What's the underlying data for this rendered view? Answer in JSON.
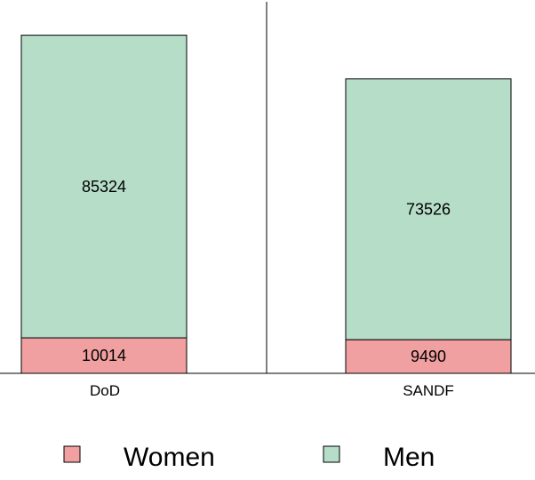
{
  "chart_data": {
    "type": "bar",
    "stacked": true,
    "categories": [
      "DoD",
      "SANDF"
    ],
    "series": [
      {
        "name": "Women",
        "values": [
          10014,
          9490
        ],
        "color": "#f0a0a0"
      },
      {
        "name": "Men",
        "values": [
          85324,
          73526
        ],
        "color": "#b5ddc8"
      }
    ],
    "title": "",
    "xlabel": "",
    "ylabel": "",
    "ylim": [
      0,
      100000
    ],
    "grid": false,
    "legend_position": "bottom"
  }
}
